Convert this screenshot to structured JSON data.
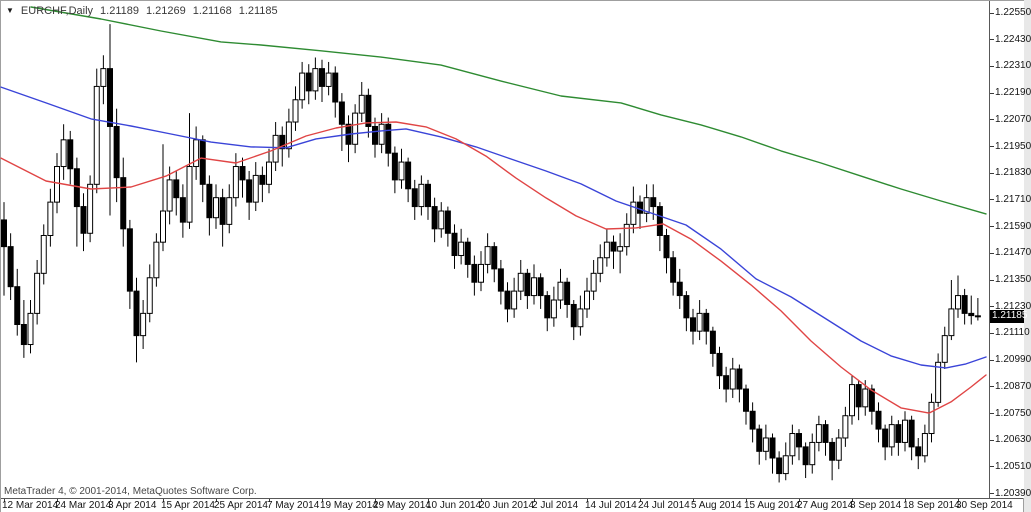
{
  "window": {
    "symbol_dropdown_icon": "▼",
    "title_symbol": "EURCHF,Daily",
    "ohlc": {
      "open": "1.21189",
      "high": "1.21269",
      "low": "1.21168",
      "close": "1.21185"
    },
    "copyright": "MetaTrader 4, © 2001-2014, MetaQuotes Software Corp."
  },
  "price_axis": {
    "ticks": [
      "1.22550",
      "1.22430",
      "1.22310",
      "1.22190",
      "1.22070",
      "1.21950",
      "1.21830",
      "1.21710",
      "1.21590",
      "1.21470",
      "1.21350",
      "1.21230",
      "1.21110",
      "1.20990",
      "1.20870",
      "1.20750",
      "1.20630",
      "1.20510",
      "1.20390"
    ],
    "current_price": "1.21185"
  },
  "time_axis": {
    "labels": [
      "12 Mar 2014",
      "24 Mar 2014",
      "3 Apr 2014",
      "15 Apr 2014",
      "25 Apr 2014",
      "7 May 2014",
      "19 May 2014",
      "29 May 2014",
      "10 Jun 2014",
      "20 Jun 2014",
      "2 Jul 2014",
      "14 Jul 2014",
      "24 Jul 2014",
      "5 Aug 2014",
      "15 Aug 2014",
      "27 Aug 2014",
      "8 Sep 2014",
      "18 Sep 2014",
      "30 Sep 2014"
    ],
    "bars_per_tick": 8
  },
  "chart_data": {
    "type": "candlestick",
    "title": "EURCHF,Daily",
    "ohlc_line": "1.21189 1.21269 1.21168 1.21185",
    "legend_position": "none",
    "grid": false,
    "y_axis": {
      "min": 1.2039,
      "max": 1.2255,
      "tick_step": 0.0012,
      "labels": [
        "1.22550",
        "1.22430",
        "1.22310",
        "1.22190",
        "1.22070",
        "1.21950",
        "1.21830",
        "1.21710",
        "1.21590",
        "1.21470",
        "1.21350",
        "1.21230",
        "1.21110",
        "1.20990",
        "1.20870",
        "1.20750",
        "1.20630",
        "1.20510",
        "1.20390"
      ]
    },
    "x_axis": {
      "labels": [
        "12 Mar 2014",
        "24 Mar 2014",
        "3 Apr 2014",
        "15 Apr 2014",
        "25 Apr 2014",
        "7 May 2014",
        "19 May 2014",
        "29 May 2014",
        "10 Jun 2014",
        "20 Jun 2014",
        "2 Jul 2014",
        "14 Jul 2014",
        "24 Jul 2014",
        "5 Aug 2014",
        "15 Aug 2014",
        "27 Aug 2014",
        "8 Sep 2014",
        "18 Sep 2014",
        "30 Sep 2014"
      ],
      "bars_per_tick": 8
    },
    "series_colors": {
      "bull": "#FFFFFF",
      "bear": "#000000",
      "outline": "#000000",
      "background": "#FFFFFF"
    },
    "candles": [
      [
        1.2162,
        1.217,
        1.2128,
        1.215
      ],
      [
        1.215,
        1.2156,
        1.2126,
        1.2132
      ],
      [
        1.2132,
        1.214,
        1.211,
        1.2115
      ],
      [
        1.2115,
        1.2126,
        1.21,
        1.2106
      ],
      [
        1.2106,
        1.2126,
        1.2102,
        1.212
      ],
      [
        1.212,
        1.2144,
        1.2115,
        1.2138
      ],
      [
        1.2138,
        1.216,
        1.2133,
        1.2155
      ],
      [
        1.2155,
        1.2176,
        1.215,
        1.217
      ],
      [
        1.217,
        1.2192,
        1.2165,
        1.2186
      ],
      [
        1.2186,
        1.2205,
        1.218,
        1.2198
      ],
      [
        1.2198,
        1.2202,
        1.2178,
        1.2185
      ],
      [
        1.2185,
        1.219,
        1.215,
        1.2168
      ],
      [
        1.2168,
        1.2174,
        1.2148,
        1.2156
      ],
      [
        1.2156,
        1.2182,
        1.2152,
        1.2178
      ],
      [
        1.2178,
        1.223,
        1.2174,
        1.2222
      ],
      [
        1.2222,
        1.2236,
        1.2214,
        1.223
      ],
      [
        1.223,
        1.225,
        1.2164,
        1.2204
      ],
      [
        1.2204,
        1.2212,
        1.217,
        1.2181
      ],
      [
        1.2181,
        1.219,
        1.215,
        1.2158
      ],
      [
        1.2158,
        1.2162,
        1.2122,
        1.213
      ],
      [
        1.213,
        1.2136,
        1.2098,
        1.211
      ],
      [
        1.211,
        1.2126,
        1.2104,
        1.212
      ],
      [
        1.212,
        1.2142,
        1.2116,
        1.2136
      ],
      [
        1.2136,
        1.2156,
        1.2132,
        1.2152
      ],
      [
        1.2152,
        1.2196,
        1.2148,
        1.2166
      ],
      [
        1.2166,
        1.2186,
        1.216,
        1.218
      ],
      [
        1.218,
        1.2184,
        1.2164,
        1.2172
      ],
      [
        1.2172,
        1.2178,
        1.2154,
        1.2161
      ],
      [
        1.2161,
        1.221,
        1.2158,
        1.2186
      ],
      [
        1.2186,
        1.2204,
        1.218,
        1.2198
      ],
      [
        1.2198,
        1.22,
        1.217,
        1.2178
      ],
      [
        1.2178,
        1.2182,
        1.2155,
        1.2163
      ],
      [
        1.2163,
        1.2178,
        1.2158,
        1.2172
      ],
      [
        1.2172,
        1.2176,
        1.215,
        1.216
      ],
      [
        1.216,
        1.2178,
        1.2156,
        1.2172
      ],
      [
        1.2172,
        1.2192,
        1.2168,
        1.2186
      ],
      [
        1.2186,
        1.219,
        1.2172,
        1.218
      ],
      [
        1.218,
        1.2184,
        1.2162,
        1.217
      ],
      [
        1.217,
        1.2188,
        1.2166,
        1.2182
      ],
      [
        1.2182,
        1.2186,
        1.217,
        1.2178
      ],
      [
        1.2178,
        1.2194,
        1.2174,
        1.2188
      ],
      [
        1.2188,
        1.2206,
        1.2184,
        1.22
      ],
      [
        1.22,
        1.2204,
        1.2186,
        1.2194
      ],
      [
        1.2194,
        1.2212,
        1.219,
        1.2206
      ],
      [
        1.2206,
        1.2222,
        1.2202,
        1.2216
      ],
      [
        1.2216,
        1.2233,
        1.2212,
        1.2228
      ],
      [
        1.2228,
        1.2232,
        1.2214,
        1.222
      ],
      [
        1.222,
        1.2235,
        1.2216,
        1.223
      ],
      [
        1.223,
        1.2234,
        1.2215,
        1.2222
      ],
      [
        1.2222,
        1.2233,
        1.2218,
        1.2228
      ],
      [
        1.2228,
        1.2231,
        1.2208,
        1.2215
      ],
      [
        1.2215,
        1.2219,
        1.2193,
        1.2205
      ],
      [
        1.2205,
        1.2209,
        1.2188,
        1.2196
      ],
      [
        1.2196,
        1.2214,
        1.2192,
        1.221
      ],
      [
        1.221,
        1.2224,
        1.2206,
        1.2218
      ],
      [
        1.2218,
        1.2221,
        1.2199,
        1.2204
      ],
      [
        1.2204,
        1.2208,
        1.219,
        1.2196
      ],
      [
        1.2196,
        1.221,
        1.2192,
        1.2205
      ],
      [
        1.2205,
        1.2208,
        1.2186,
        1.2192
      ],
      [
        1.2192,
        1.2195,
        1.2174,
        1.218
      ],
      [
        1.218,
        1.2194,
        1.2176,
        1.2188
      ],
      [
        1.2188,
        1.219,
        1.217,
        1.2176
      ],
      [
        1.2176,
        1.218,
        1.2162,
        1.2168
      ],
      [
        1.2168,
        1.2182,
        1.2164,
        1.2178
      ],
      [
        1.2178,
        1.218,
        1.2162,
        1.2168
      ],
      [
        1.2168,
        1.2172,
        1.2152,
        1.2158
      ],
      [
        1.2158,
        1.217,
        1.2154,
        1.2166
      ],
      [
        1.2166,
        1.2168,
        1.215,
        1.2156
      ],
      [
        1.2156,
        1.216,
        1.214,
        1.2146
      ],
      [
        1.2146,
        1.2158,
        1.2142,
        1.2152
      ],
      [
        1.2152,
        1.2154,
        1.2136,
        1.2142
      ],
      [
        1.2142,
        1.2146,
        1.2128,
        1.2134
      ],
      [
        1.2134,
        1.2148,
        1.213,
        1.2142
      ],
      [
        1.2142,
        1.2156,
        1.2138,
        1.215
      ],
      [
        1.215,
        1.2152,
        1.2134,
        1.214
      ],
      [
        1.214,
        1.2144,
        1.2124,
        1.213
      ],
      [
        1.213,
        1.2134,
        1.2116,
        1.2122
      ],
      [
        1.2122,
        1.2136,
        1.2118,
        1.213
      ],
      [
        1.213,
        1.2144,
        1.2126,
        1.2138
      ],
      [
        1.2138,
        1.214,
        1.2122,
        1.2128
      ],
      [
        1.2128,
        1.2142,
        1.2124,
        1.2136
      ],
      [
        1.2136,
        1.2138,
        1.2122,
        1.2128
      ],
      [
        1.2128,
        1.213,
        1.2112,
        1.2118
      ],
      [
        1.2118,
        1.2132,
        1.2114,
        1.2126
      ],
      [
        1.2126,
        1.214,
        1.2122,
        1.2134
      ],
      [
        1.2134,
        1.2136,
        1.2118,
        1.2124
      ],
      [
        1.2124,
        1.2126,
        1.2108,
        1.2114
      ],
      [
        1.2114,
        1.2128,
        1.211,
        1.2122
      ],
      [
        1.2122,
        1.2136,
        1.2118,
        1.213
      ],
      [
        1.213,
        1.2144,
        1.2126,
        1.2138
      ],
      [
        1.2138,
        1.2151,
        1.2134,
        1.2145
      ],
      [
        1.2145,
        1.2158,
        1.2141,
        1.2152
      ],
      [
        1.2152,
        1.2155,
        1.214,
        1.2148
      ],
      [
        1.2148,
        1.2156,
        1.2138,
        1.215
      ],
      [
        1.215,
        1.2165,
        1.2146,
        1.216
      ],
      [
        1.216,
        1.2177,
        1.2156,
        1.217
      ],
      [
        1.217,
        1.2173,
        1.2158,
        1.2165
      ],
      [
        1.2165,
        1.2178,
        1.2161,
        1.2172
      ],
      [
        1.2172,
        1.2178,
        1.2162,
        1.2168
      ],
      [
        1.2168,
        1.217,
        1.2148,
        1.2155
      ],
      [
        1.2155,
        1.2158,
        1.2138,
        1.2145
      ],
      [
        1.2145,
        1.2148,
        1.2128,
        1.2134
      ],
      [
        1.2134,
        1.214,
        1.2122,
        1.2128
      ],
      [
        1.2128,
        1.213,
        1.2112,
        1.2118
      ],
      [
        1.2118,
        1.2122,
        1.2106,
        1.2112
      ],
      [
        1.2112,
        1.2126,
        1.2108,
        1.212
      ],
      [
        1.212,
        1.2122,
        1.2106,
        1.2112
      ],
      [
        1.2112,
        1.2114,
        1.2096,
        1.2102
      ],
      [
        1.2102,
        1.2105,
        1.2086,
        1.2092
      ],
      [
        1.2092,
        1.2096,
        1.208,
        1.2086
      ],
      [
        1.2086,
        1.21,
        1.2082,
        1.2095
      ],
      [
        1.2095,
        1.2097,
        1.208,
        1.2086
      ],
      [
        1.2086,
        1.2088,
        1.207,
        1.2076
      ],
      [
        1.2076,
        1.208,
        1.2062,
        1.2068
      ],
      [
        1.2068,
        1.207,
        1.2052,
        1.2058
      ],
      [
        1.2058,
        1.207,
        1.2054,
        1.2064
      ],
      [
        1.2064,
        1.2066,
        1.2048,
        1.2055
      ],
      [
        1.2055,
        1.2058,
        1.2044,
        1.2048
      ],
      [
        1.2048,
        1.2062,
        1.2045,
        1.2056
      ],
      [
        1.2056,
        1.207,
        1.2052,
        1.2066
      ],
      [
        1.2066,
        1.2068,
        1.2054,
        1.206
      ],
      [
        1.206,
        1.2062,
        1.2046,
        1.2052
      ],
      [
        1.2052,
        1.2066,
        1.2048,
        1.2062
      ],
      [
        1.2062,
        1.2074,
        1.2058,
        1.207
      ],
      [
        1.207,
        1.2072,
        1.2056,
        1.2062
      ],
      [
        1.2062,
        1.2064,
        1.2045,
        1.2054
      ],
      [
        1.2054,
        1.2068,
        1.205,
        1.2064
      ],
      [
        1.2064,
        1.2078,
        1.206,
        1.2074
      ],
      [
        1.2074,
        1.2092,
        1.207,
        1.2088
      ],
      [
        1.2088,
        1.209,
        1.2072,
        1.2078
      ],
      [
        1.2078,
        1.209,
        1.2074,
        1.2086
      ],
      [
        1.2086,
        1.2088,
        1.207,
        1.2076
      ],
      [
        1.2076,
        1.208,
        1.2062,
        1.2068
      ],
      [
        1.2068,
        1.207,
        1.2054,
        1.206
      ],
      [
        1.206,
        1.2074,
        1.2056,
        1.207
      ],
      [
        1.207,
        1.2072,
        1.2056,
        1.2062
      ],
      [
        1.2062,
        1.2076,
        1.2058,
        1.2072
      ],
      [
        1.2072,
        1.2074,
        1.2054,
        1.206
      ],
      [
        1.206,
        1.2064,
        1.205,
        1.2056
      ],
      [
        1.2056,
        1.207,
        1.2053,
        1.2066
      ],
      [
        1.2066,
        1.2084,
        1.2062,
        1.208
      ],
      [
        1.208,
        1.2102,
        1.2078,
        1.2098
      ],
      [
        1.2098,
        1.2114,
        1.2095,
        1.211
      ],
      [
        1.211,
        1.2135,
        1.2108,
        1.2122
      ],
      [
        1.2122,
        1.2137,
        1.2118,
        1.2128
      ],
      [
        1.2128,
        1.2131,
        1.2115,
        1.212
      ],
      [
        1.212,
        1.2128,
        1.2115,
        1.2119
      ],
      [
        1.21189,
        1.21269,
        1.21168,
        1.21185
      ]
    ],
    "overlays": [
      {
        "name": "ma-slow-green",
        "color": "#2E8B32",
        "points": [
          [
            30,
            1.22577
          ],
          [
            100,
            1.22523
          ],
          [
            160,
            1.22469
          ],
          [
            220,
            1.2242
          ],
          [
            260,
            1.22406
          ],
          [
            320,
            1.2238
          ],
          [
            380,
            1.22352
          ],
          [
            440,
            1.22316
          ],
          [
            500,
            1.22244
          ],
          [
            560,
            1.22177
          ],
          [
            620,
            1.22146
          ],
          [
            660,
            1.22092
          ],
          [
            700,
            1.22047
          ],
          [
            740,
            1.21993
          ],
          [
            780,
            1.2193
          ],
          [
            820,
            1.21876
          ],
          [
            860,
            1.21817
          ],
          [
            900,
            1.21759
          ],
          [
            940,
            1.21705
          ],
          [
            985,
            1.21647
          ]
        ]
      },
      {
        "name": "ma-medium-blue",
        "color": "#3A44D8",
        "points": [
          [
            0,
            1.22217
          ],
          [
            45,
            1.22146
          ],
          [
            90,
            1.22074
          ],
          [
            130,
            1.22042
          ],
          [
            170,
            1.22006
          ],
          [
            210,
            1.2197
          ],
          [
            250,
            1.21948
          ],
          [
            285,
            1.21944
          ],
          [
            315,
            1.21984
          ],
          [
            350,
            1.22006
          ],
          [
            380,
            1.2202
          ],
          [
            405,
            1.22029
          ],
          [
            440,
            1.21993
          ],
          [
            475,
            1.21948
          ],
          [
            510,
            1.21894
          ],
          [
            545,
            1.2184
          ],
          [
            580,
            1.21782
          ],
          [
            615,
            1.21705
          ],
          [
            650,
            1.21651
          ],
          [
            685,
            1.21597
          ],
          [
            720,
            1.21489
          ],
          [
            755,
            1.21355
          ],
          [
            790,
            1.21274
          ],
          [
            825,
            1.21175
          ],
          [
            860,
            1.21076
          ],
          [
            890,
            1.21009
          ],
          [
            920,
            1.20968
          ],
          [
            945,
            1.20955
          ],
          [
            965,
            1.20973
          ],
          [
            985,
            1.21004
          ]
        ]
      },
      {
        "name": "ma-fast-red",
        "color": "#E04545",
        "points": [
          [
            0,
            1.21898
          ],
          [
            45,
            1.21795
          ],
          [
            90,
            1.21759
          ],
          [
            130,
            1.21768
          ],
          [
            165,
            1.21817
          ],
          [
            200,
            1.21898
          ],
          [
            235,
            1.21876
          ],
          [
            270,
            1.2193
          ],
          [
            305,
            1.21997
          ],
          [
            335,
            1.22033
          ],
          [
            365,
            1.22056
          ],
          [
            395,
            1.2206
          ],
          [
            425,
            1.22038
          ],
          [
            455,
            1.21984
          ],
          [
            485,
            1.21907
          ],
          [
            515,
            1.21808
          ],
          [
            545,
            1.21719
          ],
          [
            575,
            1.21638
          ],
          [
            605,
            1.21579
          ],
          [
            635,
            1.21584
          ],
          [
            662,
            1.21602
          ],
          [
            690,
            1.21534
          ],
          [
            720,
            1.21435
          ],
          [
            750,
            1.21328
          ],
          [
            780,
            1.21211
          ],
          [
            810,
            1.21076
          ],
          [
            840,
            1.20959
          ],
          [
            870,
            1.20856
          ],
          [
            900,
            1.20775
          ],
          [
            928,
            1.20752
          ],
          [
            950,
            1.20802
          ],
          [
            970,
            1.20869
          ],
          [
            985,
            1.20923
          ]
        ]
      }
    ]
  }
}
